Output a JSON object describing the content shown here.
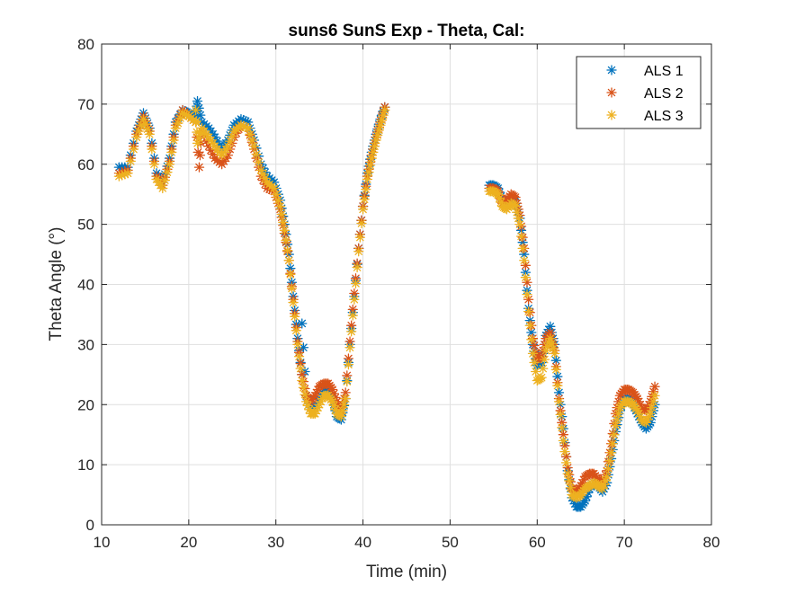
{
  "chart_data": {
    "type": "scatter",
    "title": "suns6 SunS Exp - Theta, Cal:",
    "xlabel": "Time (min)",
    "ylabel": "Theta Angle (°)",
    "xlim": [
      10,
      80
    ],
    "ylim": [
      0,
      80
    ],
    "xticks": [
      10,
      20,
      30,
      40,
      50,
      60,
      70,
      80
    ],
    "yticks": [
      0,
      10,
      20,
      30,
      40,
      50,
      60,
      70,
      80
    ],
    "xtick_labels": [
      "10",
      "20",
      "30",
      "40",
      "50",
      "60",
      "70",
      "80"
    ],
    "ytick_labels": [
      "0",
      "10",
      "20",
      "30",
      "40",
      "50",
      "60",
      "70",
      "80"
    ],
    "grid": true,
    "legend_position": "top-right",
    "marker": "asterisk",
    "series": [
      {
        "name": "ALS 1",
        "color": "#0072BD",
        "points": [
          [
            12.0,
            59.5
          ],
          [
            13.0,
            59.5
          ],
          [
            14.0,
            65.5
          ],
          [
            14.8,
            68.5
          ],
          [
            15.5,
            66.0
          ],
          [
            16.3,
            58.5
          ],
          [
            17.0,
            57.0
          ],
          [
            17.8,
            61.0
          ],
          [
            18.5,
            67.0
          ],
          [
            19.3,
            69.0
          ],
          [
            20.0,
            68.5
          ],
          [
            20.8,
            68.0
          ],
          [
            21.5,
            67.0
          ],
          [
            22.3,
            66.0
          ],
          [
            23.0,
            64.5
          ],
          [
            23.8,
            62.5
          ],
          [
            24.5,
            64.0
          ],
          [
            25.2,
            66.5
          ],
          [
            26.0,
            67.5
          ],
          [
            26.8,
            67.0
          ],
          [
            27.5,
            64.0
          ],
          [
            28.3,
            60.0
          ],
          [
            29.0,
            58.0
          ],
          [
            29.8,
            57.0
          ],
          [
            30.5,
            54.0
          ],
          [
            31.0,
            50.0
          ],
          [
            31.5,
            45.0
          ],
          [
            32.0,
            38.0
          ],
          [
            32.5,
            31.0
          ],
          [
            33.0,
            25.0
          ],
          [
            33.5,
            21.5
          ],
          [
            34.0,
            19.5
          ],
          [
            34.5,
            19.5
          ],
          [
            35.0,
            21.0
          ],
          [
            35.5,
            22.5
          ],
          [
            36.0,
            22.5
          ],
          [
            36.5,
            21.0
          ],
          [
            37.0,
            18.0
          ],
          [
            37.5,
            17.5
          ],
          [
            38.0,
            21.0
          ],
          [
            38.5,
            30.0
          ],
          [
            39.0,
            38.0
          ],
          [
            39.5,
            46.0
          ],
          [
            40.0,
            53.0
          ],
          [
            40.5,
            58.5
          ],
          [
            41.0,
            62.0
          ],
          [
            41.5,
            65.0
          ],
          [
            42.0,
            67.5
          ],
          [
            42.5,
            69.5
          ],
          [
            21.0,
            70.5
          ],
          [
            33.0,
            33.5
          ],
          [
            54.5,
            56.5
          ],
          [
            55.0,
            56.5
          ],
          [
            55.5,
            56.0
          ],
          [
            56.0,
            54.0
          ],
          [
            56.5,
            53.0
          ],
          [
            57.0,
            54.5
          ],
          [
            57.5,
            54.0
          ],
          [
            58.0,
            51.0
          ],
          [
            58.5,
            45.0
          ],
          [
            59.0,
            36.0
          ],
          [
            59.5,
            30.0
          ],
          [
            60.0,
            26.5
          ],
          [
            60.5,
            27.0
          ],
          [
            61.0,
            31.5
          ],
          [
            61.5,
            33.0
          ],
          [
            62.0,
            30.0
          ],
          [
            62.5,
            22.0
          ],
          [
            63.0,
            16.0
          ],
          [
            63.5,
            9.0
          ],
          [
            64.0,
            4.5
          ],
          [
            64.5,
            3.0
          ],
          [
            65.0,
            3.0
          ],
          [
            65.5,
            4.0
          ],
          [
            66.0,
            6.0
          ],
          [
            66.5,
            7.0
          ],
          [
            67.0,
            6.5
          ],
          [
            67.5,
            5.5
          ],
          [
            68.0,
            7.0
          ],
          [
            68.5,
            11.0
          ],
          [
            69.0,
            15.5
          ],
          [
            69.5,
            19.0
          ],
          [
            70.0,
            21.0
          ],
          [
            70.5,
            21.0
          ],
          [
            71.0,
            20.0
          ],
          [
            71.5,
            18.5
          ],
          [
            72.0,
            17.0
          ],
          [
            72.5,
            16.0
          ],
          [
            73.0,
            17.0
          ],
          [
            73.5,
            20.0
          ]
        ]
      },
      {
        "name": "ALS 2",
        "color": "#D95319",
        "points": [
          [
            12.0,
            58.5
          ],
          [
            13.0,
            59.0
          ],
          [
            14.0,
            65.0
          ],
          [
            14.8,
            68.0
          ],
          [
            15.5,
            65.5
          ],
          [
            16.3,
            58.0
          ],
          [
            17.0,
            56.5
          ],
          [
            17.8,
            60.5
          ],
          [
            18.5,
            66.5
          ],
          [
            19.3,
            69.0
          ],
          [
            20.0,
            68.0
          ],
          [
            20.8,
            67.0
          ],
          [
            21.5,
            65.5
          ],
          [
            22.3,
            63.0
          ],
          [
            23.0,
            61.0
          ],
          [
            23.8,
            60.0
          ],
          [
            24.5,
            61.5
          ],
          [
            25.2,
            64.5
          ],
          [
            26.0,
            66.5
          ],
          [
            26.8,
            66.0
          ],
          [
            27.5,
            62.5
          ],
          [
            28.3,
            58.0
          ],
          [
            29.0,
            56.0
          ],
          [
            29.8,
            55.5
          ],
          [
            30.5,
            52.5
          ],
          [
            31.0,
            48.5
          ],
          [
            31.5,
            44.0
          ],
          [
            32.0,
            37.5
          ],
          [
            32.5,
            30.5
          ],
          [
            33.0,
            25.0
          ],
          [
            33.5,
            21.5
          ],
          [
            34.0,
            20.5
          ],
          [
            34.5,
            21.5
          ],
          [
            35.0,
            23.0
          ],
          [
            35.5,
            23.5
          ],
          [
            36.0,
            23.5
          ],
          [
            36.5,
            22.5
          ],
          [
            37.0,
            20.5
          ],
          [
            37.5,
            19.0
          ],
          [
            38.0,
            22.0
          ],
          [
            38.5,
            30.5
          ],
          [
            39.0,
            38.5
          ],
          [
            39.5,
            46.0
          ],
          [
            40.0,
            53.0
          ],
          [
            40.5,
            58.0
          ],
          [
            41.0,
            61.5
          ],
          [
            41.5,
            64.5
          ],
          [
            42.0,
            67.0
          ],
          [
            42.5,
            69.5
          ],
          [
            21.2,
            59.5
          ],
          [
            54.5,
            56.0
          ],
          [
            55.0,
            56.0
          ],
          [
            55.5,
            55.5
          ],
          [
            56.0,
            53.5
          ],
          [
            56.5,
            54.0
          ],
          [
            57.0,
            55.0
          ],
          [
            57.5,
            54.5
          ],
          [
            58.0,
            51.5
          ],
          [
            58.5,
            46.0
          ],
          [
            59.0,
            37.5
          ],
          [
            59.5,
            31.0
          ],
          [
            60.0,
            27.5
          ],
          [
            60.5,
            28.0
          ],
          [
            61.0,
            31.0
          ],
          [
            61.5,
            32.0
          ],
          [
            62.0,
            29.0
          ],
          [
            62.5,
            21.0
          ],
          [
            63.0,
            15.0
          ],
          [
            63.5,
            9.5
          ],
          [
            64.0,
            6.0
          ],
          [
            64.5,
            5.5
          ],
          [
            65.0,
            6.5
          ],
          [
            65.5,
            8.0
          ],
          [
            66.0,
            8.5
          ],
          [
            66.5,
            8.5
          ],
          [
            67.0,
            7.5
          ],
          [
            67.5,
            7.0
          ],
          [
            68.0,
            9.0
          ],
          [
            68.5,
            13.5
          ],
          [
            69.0,
            18.5
          ],
          [
            69.5,
            21.5
          ],
          [
            70.0,
            22.5
          ],
          [
            70.5,
            22.5
          ],
          [
            71.0,
            22.0
          ],
          [
            71.5,
            21.0
          ],
          [
            72.0,
            19.5
          ],
          [
            72.5,
            19.0
          ],
          [
            73.0,
            20.5
          ],
          [
            73.5,
            23.0
          ]
        ]
      },
      {
        "name": "ALS 3",
        "color": "#EDB120",
        "points": [
          [
            12.0,
            58.0
          ],
          [
            13.0,
            58.5
          ],
          [
            14.0,
            64.5
          ],
          [
            14.8,
            67.5
          ],
          [
            15.5,
            65.0
          ],
          [
            16.3,
            57.5
          ],
          [
            17.0,
            56.0
          ],
          [
            17.8,
            60.0
          ],
          [
            18.5,
            66.0
          ],
          [
            19.3,
            68.5
          ],
          [
            20.0,
            68.0
          ],
          [
            20.8,
            67.0
          ],
          [
            21.5,
            66.0
          ],
          [
            22.3,
            64.5
          ],
          [
            23.0,
            63.0
          ],
          [
            23.8,
            61.5
          ],
          [
            24.5,
            63.0
          ],
          [
            25.2,
            65.5
          ],
          [
            26.0,
            66.5
          ],
          [
            26.8,
            66.0
          ],
          [
            27.5,
            63.0
          ],
          [
            28.3,
            59.0
          ],
          [
            29.0,
            57.0
          ],
          [
            29.8,
            56.0
          ],
          [
            30.5,
            53.0
          ],
          [
            31.0,
            49.0
          ],
          [
            31.5,
            44.0
          ],
          [
            32.0,
            37.0
          ],
          [
            32.5,
            30.0
          ],
          [
            33.0,
            24.0
          ],
          [
            33.5,
            20.5
          ],
          [
            34.0,
            18.5
          ],
          [
            34.5,
            18.5
          ],
          [
            35.0,
            20.0
          ],
          [
            35.5,
            21.5
          ],
          [
            36.0,
            21.5
          ],
          [
            36.5,
            20.5
          ],
          [
            37.0,
            18.5
          ],
          [
            37.5,
            18.0
          ],
          [
            38.0,
            21.0
          ],
          [
            38.5,
            29.5
          ],
          [
            39.0,
            37.5
          ],
          [
            39.5,
            45.5
          ],
          [
            40.0,
            52.5
          ],
          [
            40.5,
            57.5
          ],
          [
            41.0,
            61.0
          ],
          [
            41.5,
            64.0
          ],
          [
            42.0,
            66.5
          ],
          [
            42.5,
            69.0
          ],
          [
            21.0,
            63.5
          ],
          [
            20.8,
            69.0
          ],
          [
            54.5,
            55.5
          ],
          [
            55.0,
            55.5
          ],
          [
            55.5,
            55.0
          ],
          [
            56.0,
            53.0
          ],
          [
            56.5,
            52.5
          ],
          [
            57.0,
            53.5
          ],
          [
            57.5,
            53.0
          ],
          [
            58.0,
            50.0
          ],
          [
            58.5,
            44.0
          ],
          [
            59.0,
            35.5
          ],
          [
            59.5,
            28.5
          ],
          [
            60.0,
            24.0
          ],
          [
            60.5,
            24.5
          ],
          [
            61.0,
            29.0
          ],
          [
            61.5,
            31.0
          ],
          [
            62.0,
            28.5
          ],
          [
            62.5,
            20.5
          ],
          [
            63.0,
            14.0
          ],
          [
            63.5,
            8.5
          ],
          [
            64.0,
            5.0
          ],
          [
            64.5,
            4.5
          ],
          [
            65.0,
            5.0
          ],
          [
            65.5,
            6.0
          ],
          [
            66.0,
            6.5
          ],
          [
            66.5,
            7.0
          ],
          [
            67.0,
            6.5
          ],
          [
            67.5,
            6.0
          ],
          [
            68.0,
            8.0
          ],
          [
            68.5,
            12.0
          ],
          [
            69.0,
            16.5
          ],
          [
            69.5,
            19.5
          ],
          [
            70.0,
            20.5
          ],
          [
            70.5,
            20.5
          ],
          [
            71.0,
            20.0
          ],
          [
            71.5,
            19.0
          ],
          [
            72.0,
            17.5
          ],
          [
            72.5,
            17.0
          ],
          [
            73.0,
            18.5
          ],
          [
            73.5,
            21.5
          ]
        ]
      }
    ]
  }
}
